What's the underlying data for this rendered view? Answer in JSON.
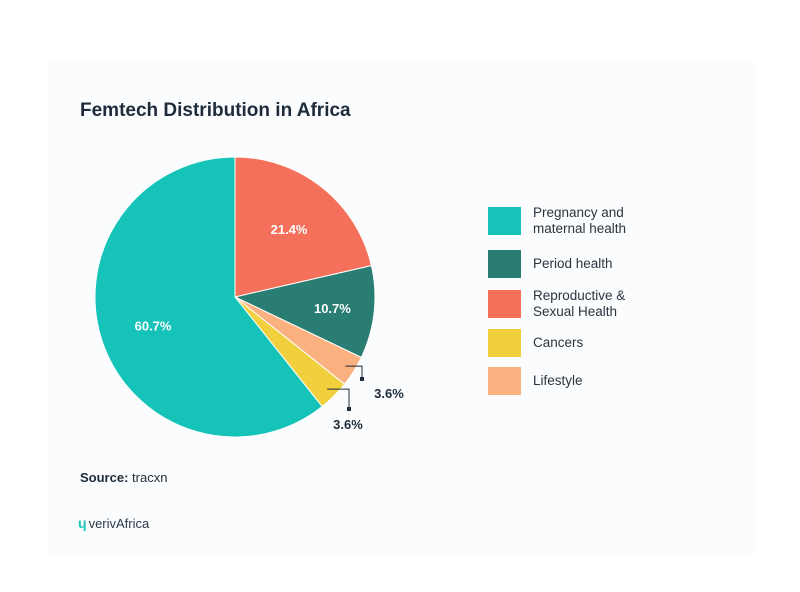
{
  "chart_data": {
    "type": "pie",
    "title": "Femtech Distribution in Africa",
    "slices": [
      {
        "label": "Pregnancy and maternal health",
        "value": 60.7,
        "display": "60.7%",
        "color": "#16c3b9"
      },
      {
        "label": "Period health",
        "value": 10.7,
        "display": "10.7%",
        "color": "#2a7d72"
      },
      {
        "label": "Reproductive & Sexual Health",
        "value": 21.4,
        "display": "21.4%",
        "color": "#f4705a"
      },
      {
        "label": "Cancers",
        "value": 3.6,
        "display": "3.6%",
        "color": "#f2cf3d"
      },
      {
        "label": "Lifestyle",
        "value": 3.6,
        "display": "3.6%",
        "color": "#fbb17f"
      }
    ],
    "legend_position": "right"
  },
  "source": {
    "prefix": "Source:",
    "value": "tracxn"
  },
  "logo": {
    "mark": "ɥ",
    "text": "verivAfrica"
  }
}
